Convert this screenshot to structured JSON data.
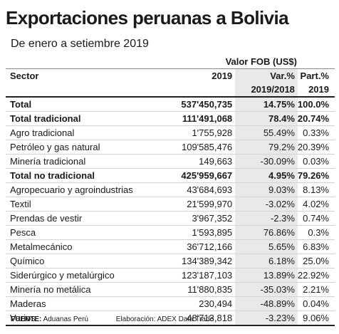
{
  "title": "Exportaciones peruanas a Bolivia",
  "subtitle": "De enero a setiembre 2019",
  "header": {
    "group": "Valor FOB (US$)",
    "sector": "Sector",
    "year": "2019",
    "var_line1": "Var.%",
    "var_line2": "2019/2018",
    "part_line1": "Part.%",
    "part_line2": "2019"
  },
  "rows": [
    {
      "sector": "Total",
      "value": "537'450,735",
      "var": "14.75%",
      "part": "100.0%"
    },
    {
      "sector": "Total tradicional",
      "value": "111'491,068",
      "var": "78.4%",
      "part": "20.74%"
    },
    {
      "sector": "Agro tradicional",
      "value": "1'755,928",
      "var": "55.49%",
      "part": "0.33%"
    },
    {
      "sector": "Petróleo y gas natural",
      "value": "109'585,476",
      "var": "79.2%",
      "part": "20.39%"
    },
    {
      "sector": "Minería tradicional",
      "value": "149,663",
      "var": "-30.09%",
      "part": "0.03%"
    },
    {
      "sector": "Total no tradicional",
      "value": "425'959,667",
      "var": "4.95%",
      "part": "79.26%"
    },
    {
      "sector": "Agropecuario y agroindustrias",
      "value": "43'684,693",
      "var": "9.03%",
      "part": "8.13%"
    },
    {
      "sector": "Textil",
      "value": "21'599,970",
      "var": "-3.02%",
      "part": "4.02%"
    },
    {
      "sector": "Prendas de vestir",
      "value": "3'967,352",
      "var": "-2.3%",
      "part": "0.74%"
    },
    {
      "sector": "Pesca",
      "value": "1'593,895",
      "var": "76.86%",
      "part": "0.3%"
    },
    {
      "sector": "Metalmecánico",
      "value": "36'712,166",
      "var": "5.65%",
      "part": "6.83%"
    },
    {
      "sector": "Químico",
      "value": "134'389,342",
      "var": "6.18%",
      "part": "25.0%"
    },
    {
      "sector": "Siderúrgico y metalúrgico",
      "value": "123'187,103",
      "var": "13.89%",
      "part": "22.92%"
    },
    {
      "sector": "Minería no metálica",
      "value": "11'880,835",
      "var": "-35.03%",
      "part": "2.21%"
    },
    {
      "sector": "Maderas",
      "value": "230,494",
      "var": "-48.89%",
      "part": "0.04%"
    },
    {
      "sector": "Varios",
      "value": "48'713,818",
      "var": "-3.23%",
      "part": "9.06%"
    }
  ],
  "footer": {
    "source_label": "FUENTE:",
    "source_value": "Aduanas Perú",
    "elab_label": "Elaboración:",
    "elab_value": "ADEX Data Trade"
  }
}
